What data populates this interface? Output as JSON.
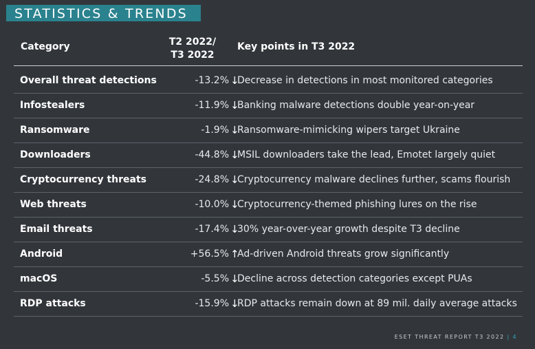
{
  "title": "STATISTICS & TRENDS",
  "table": {
    "headers": {
      "category": "Category",
      "change_line1": "T2 2022/",
      "change_line2": "T3 2022",
      "key_points": "Key points in T3 2022"
    },
    "rows": [
      {
        "category": "Overall threat detections",
        "change": "-13.2%",
        "direction": "down",
        "arrow": "↓",
        "key_point": "Decrease in detections in most monitored categories"
      },
      {
        "category": "Infostealers",
        "change": "-11.9%",
        "direction": "down",
        "arrow": "↓",
        "key_point": "Banking malware detections double year-on-year"
      },
      {
        "category": "Ransomware",
        "change": "-1.9%",
        "direction": "down",
        "arrow": "↓",
        "key_point": "Ransomware-mimicking wipers target Ukraine"
      },
      {
        "category": "Downloaders",
        "change": "-44.8%",
        "direction": "down",
        "arrow": "↓",
        "key_point": "MSIL downloaders take the lead, Emotet largely quiet"
      },
      {
        "category": "Cryptocurrency threats",
        "change": "-24.8%",
        "direction": "down",
        "arrow": "↓",
        "key_point": "Cryptocurrency malware declines further, scams flourish"
      },
      {
        "category": "Web threats",
        "change": "-10.0%",
        "direction": "down",
        "arrow": "↓",
        "key_point": "Cryptocurrency-themed phishing lures on the rise"
      },
      {
        "category": "Email threats",
        "change": "-17.4%",
        "direction": "down",
        "arrow": "↓",
        "key_point": "30% year-over-year growth despite T3 decline"
      },
      {
        "category": "Android",
        "change": "+56.5%",
        "direction": "up",
        "arrow": "↑",
        "key_point": "Ad-driven Android threats grow significantly"
      },
      {
        "category": "macOS",
        "change": "-5.5%",
        "direction": "down",
        "arrow": "↓",
        "key_point": "Decline across detection categories except PUAs"
      },
      {
        "category": "RDP attacks",
        "change": "-15.9%",
        "direction": "down",
        "arrow": "↓",
        "key_point": "RDP attacks remain down at 89 mil. daily average attacks"
      }
    ]
  },
  "footer": {
    "report": "ESET THREAT REPORT T3 2022",
    "separator": "|",
    "page": "4"
  },
  "colors": {
    "background": "#32363b",
    "title_bar": "#2a828e",
    "accent": "#2fa3b2"
  }
}
